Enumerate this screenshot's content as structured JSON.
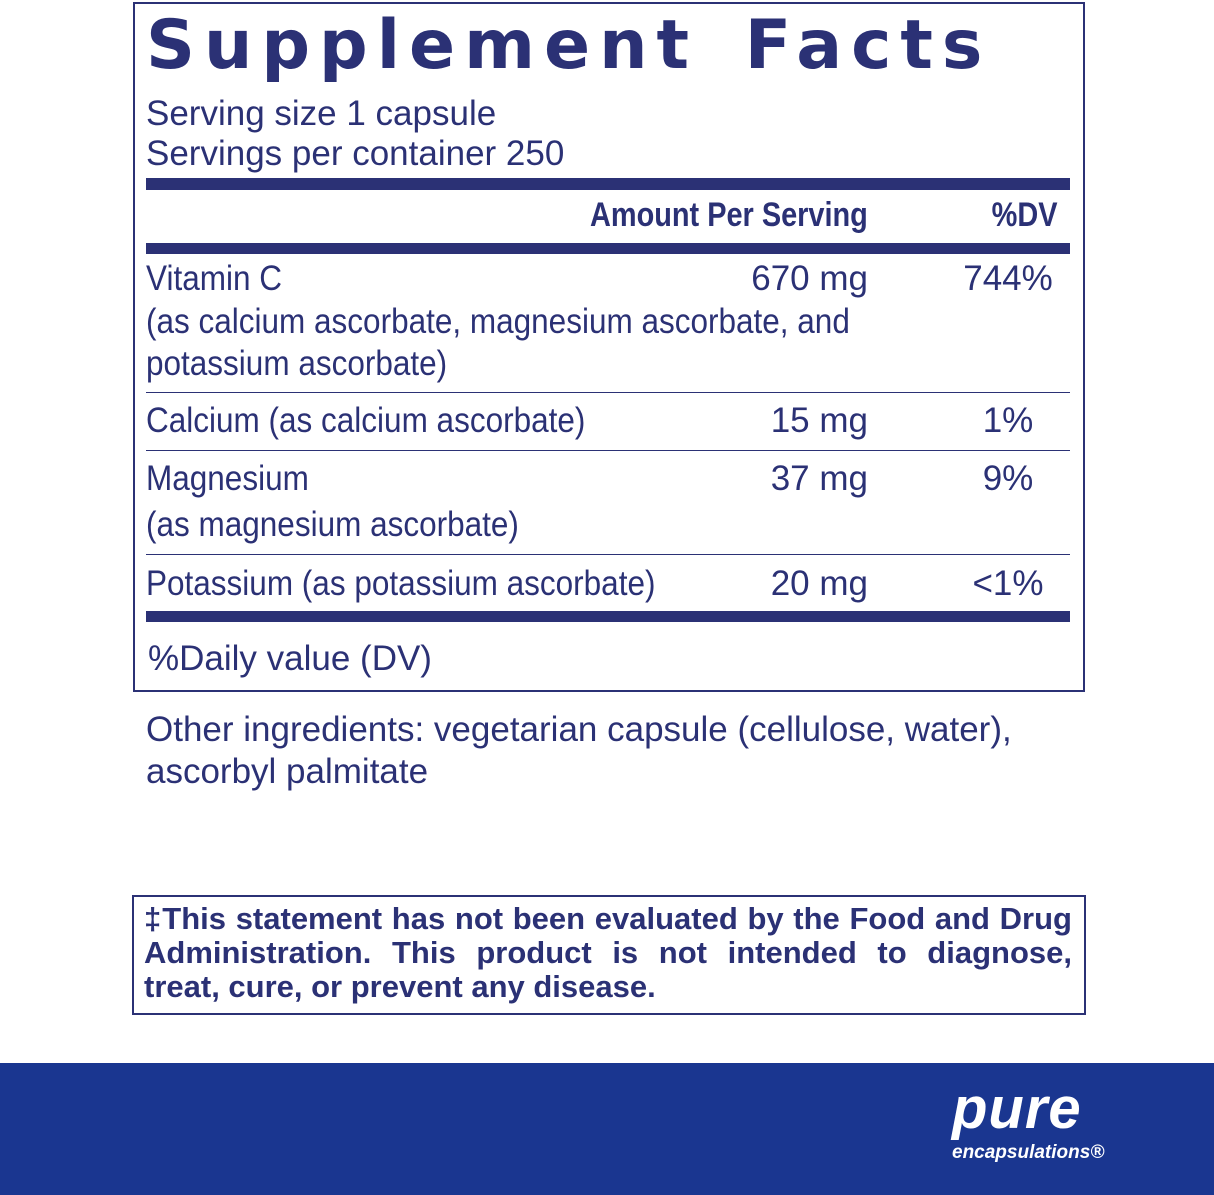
{
  "title": "Supplement Facts",
  "serving_size": "Serving size  1 capsule",
  "servings_per_container": "Servings per container  250",
  "header": {
    "amount": "Amount Per Serving",
    "dv": "%DV"
  },
  "rows": [
    {
      "name": "Vitamin C",
      "detail1": "(as calcium ascorbate, magnesium ascorbate, and",
      "detail2": "potassium ascorbate)",
      "amount": "670 mg",
      "dv": "744%"
    },
    {
      "name": "Calcium (as calcium ascorbate)",
      "amount": "15 mg",
      "dv": "1%"
    },
    {
      "name": "Magnesium",
      "detail1": "(as magnesium ascorbate)",
      "amount": "37 mg",
      "dv": "9%"
    },
    {
      "name": "Potassium (as potassium ascorbate)",
      "amount": "20 mg",
      "dv": "<1%"
    }
  ],
  "dv_note": "%Daily value (DV)",
  "other_ingredients_1": "Other ingredients: vegetarian capsule (cellulose, water),",
  "other_ingredients_2": "ascorbyl palmitate",
  "disclaimer": "‡This statement has not been evaluated by the Food and Drug Administration. This product is not intended to diagnose, treat, cure, or prevent any disease.",
  "brand": {
    "line1": "pure",
    "line2": "encapsulations®"
  },
  "colors": {
    "label_navy": "#2b3175",
    "footer_blue": "#1a3690"
  }
}
